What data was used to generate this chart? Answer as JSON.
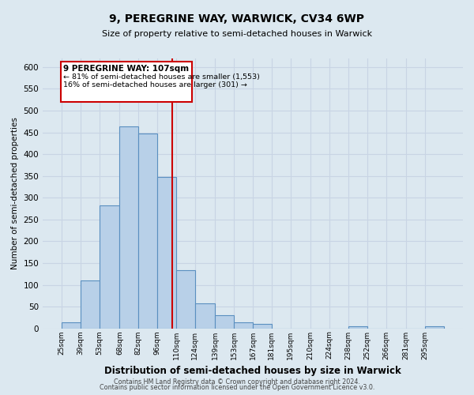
{
  "title": "9, PEREGRINE WAY, WARWICK, CV34 6WP",
  "subtitle": "Size of property relative to semi-detached houses in Warwick",
  "xlabel": "Distribution of semi-detached houses by size in Warwick",
  "ylabel": "Number of semi-detached properties",
  "bar_edges": [
    25,
    39,
    53,
    68,
    82,
    96,
    110,
    124,
    139,
    153,
    167,
    181,
    195,
    210,
    224,
    238,
    252,
    266,
    281,
    295,
    309
  ],
  "bar_heights": [
    13,
    110,
    283,
    463,
    447,
    348,
    133,
    57,
    30,
    13,
    10,
    0,
    0,
    0,
    0,
    5,
    0,
    0,
    0,
    5
  ],
  "bar_color": "#b8d0e8",
  "bar_edge_color": "#5a8fc0",
  "property_value": 107,
  "vline_color": "#cc0000",
  "annotation_title": "9 PEREGRINE WAY: 107sqm",
  "annotation_line1": "← 81% of semi-detached houses are smaller (1,553)",
  "annotation_line2": "16% of semi-detached houses are larger (301) →",
  "annotation_box_color": "#ffffff",
  "annotation_box_edge": "#cc0000",
  "ylim": [
    0,
    620
  ],
  "yticks": [
    0,
    50,
    100,
    150,
    200,
    250,
    300,
    350,
    400,
    450,
    500,
    550,
    600
  ],
  "grid_color": "#c8d4e4",
  "background_color": "#dce8f0",
  "footer1": "Contains HM Land Registry data © Crown copyright and database right 2024.",
  "footer2": "Contains public sector information licensed under the Open Government Licence v3.0."
}
